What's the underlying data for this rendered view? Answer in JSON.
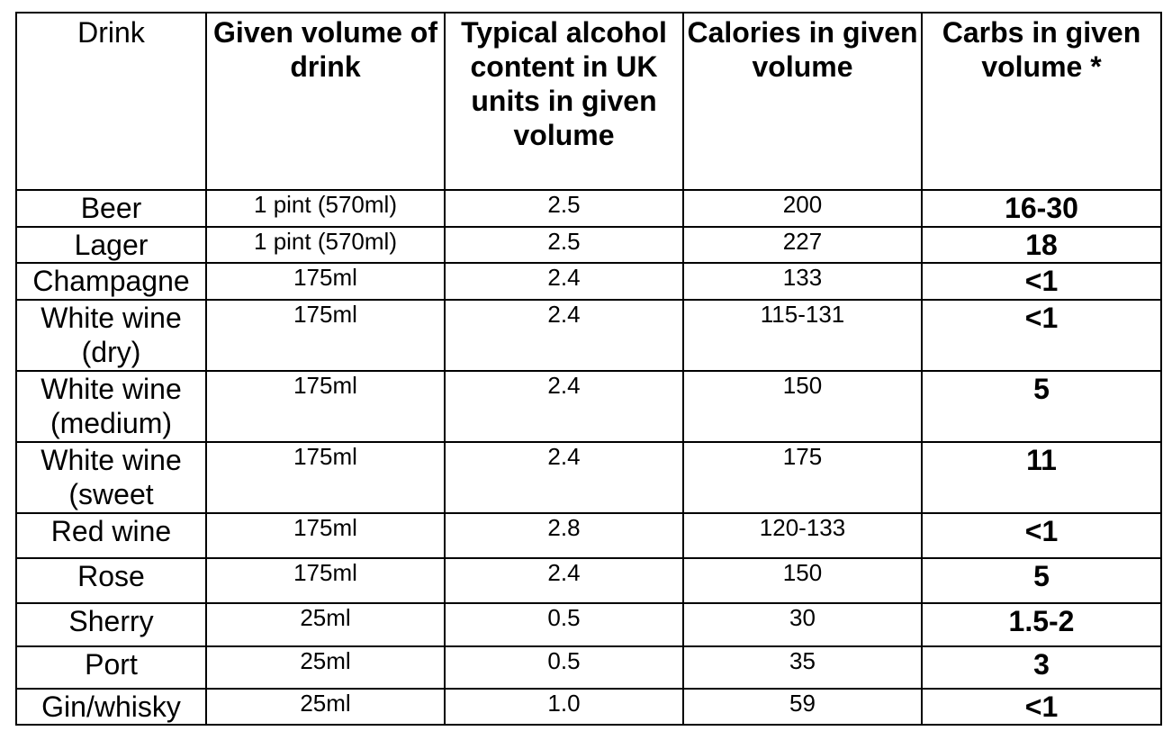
{
  "headers": {
    "drink": "Drink",
    "volume": "Given volume of drink",
    "alcohol": "Typical alcohol content in UK units in given volume",
    "calories": "Calories in given volume",
    "carbs": "Carbs in given volume *"
  },
  "rows": [
    {
      "drink": "Beer",
      "volume": "1 pint (570ml)",
      "alcohol": "2.5",
      "calories": "200",
      "carbs": "16-30"
    },
    {
      "drink": "Lager",
      "volume": "1 pint (570ml)",
      "alcohol": "2.5",
      "calories": "227",
      "carbs": "18"
    },
    {
      "drink": "Champagne",
      "volume": "175ml",
      "alcohol": "2.4",
      "calories": "133",
      "carbs": "<1"
    },
    {
      "drink": "White wine (dry)",
      "volume": "175ml",
      "alcohol": "2.4",
      "calories": "115-131",
      "carbs": "<1"
    },
    {
      "drink": "White wine (medium)",
      "volume": "175ml",
      "alcohol": "2.4",
      "calories": "150",
      "carbs": "5"
    },
    {
      "drink": "White wine (sweet",
      "volume": "175ml",
      "alcohol": "2.4",
      "calories": "175",
      "carbs": "11"
    },
    {
      "drink": "Red wine",
      "volume": "175ml",
      "alcohol": "2.8",
      "calories": "120-133",
      "carbs": "<1"
    },
    {
      "drink": "Rose",
      "volume": "175ml",
      "alcohol": "2.4",
      "calories": "150",
      "carbs": "5"
    },
    {
      "drink": "Sherry",
      "volume": "25ml",
      "alcohol": "0.5",
      "calories": "30",
      "carbs": "1.5-2"
    },
    {
      "drink": "Port",
      "volume": "25ml",
      "alcohol": "0.5",
      "calories": "35",
      "carbs": "3"
    },
    {
      "drink": "Gin/whisky",
      "volume": "25ml",
      "alcohol": "1.0",
      "calories": "59",
      "carbs": "<1"
    }
  ]
}
